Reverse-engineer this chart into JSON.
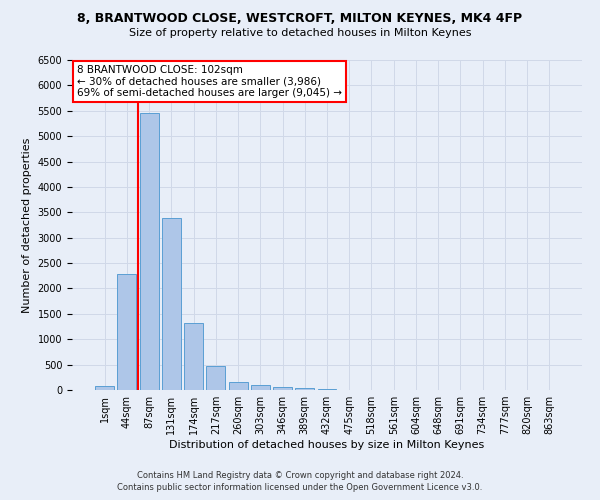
{
  "title_line1": "8, BRANTWOOD CLOSE, WESTCROFT, MILTON KEYNES, MK4 4FP",
  "title_line2": "Size of property relative to detached houses in Milton Keynes",
  "xlabel": "Distribution of detached houses by size in Milton Keynes",
  "ylabel": "Number of detached properties",
  "footer_line1": "Contains HM Land Registry data © Crown copyright and database right 2024.",
  "footer_line2": "Contains public sector information licensed under the Open Government Licence v3.0.",
  "annotation_line1": "8 BRANTWOOD CLOSE: 102sqm",
  "annotation_line2": "← 30% of detached houses are smaller (3,986)",
  "annotation_line3": "69% of semi-detached houses are larger (9,045) →",
  "bar_labels": [
    "1sqm",
    "44sqm",
    "87sqm",
    "131sqm",
    "174sqm",
    "217sqm",
    "260sqm",
    "303sqm",
    "346sqm",
    "389sqm",
    "432sqm",
    "475sqm",
    "518sqm",
    "561sqm",
    "604sqm",
    "648sqm",
    "691sqm",
    "734sqm",
    "777sqm",
    "820sqm",
    "863sqm"
  ],
  "bar_values": [
    75,
    2280,
    5450,
    3390,
    1310,
    480,
    165,
    90,
    55,
    30,
    15,
    8,
    5,
    3,
    2,
    2,
    1,
    1,
    1,
    1,
    1
  ],
  "bar_color": "#aec6e8",
  "bar_edge_color": "#5a9fd4",
  "vline_x": 1.5,
  "vline_color": "red",
  "ylim": [
    0,
    6500
  ],
  "yticks": [
    0,
    500,
    1000,
    1500,
    2000,
    2500,
    3000,
    3500,
    4000,
    4500,
    5000,
    5500,
    6000,
    6500
  ],
  "grid_color": "#d0d8e8",
  "background_color": "#e8eef8",
  "annotation_box_color": "white",
  "annotation_box_edge_color": "red",
  "title_fontsize": 9,
  "subtitle_fontsize": 8,
  "ylabel_fontsize": 8,
  "xlabel_fontsize": 8,
  "tick_fontsize": 7,
  "footer_fontsize": 6,
  "annotation_fontsize": 7.5
}
